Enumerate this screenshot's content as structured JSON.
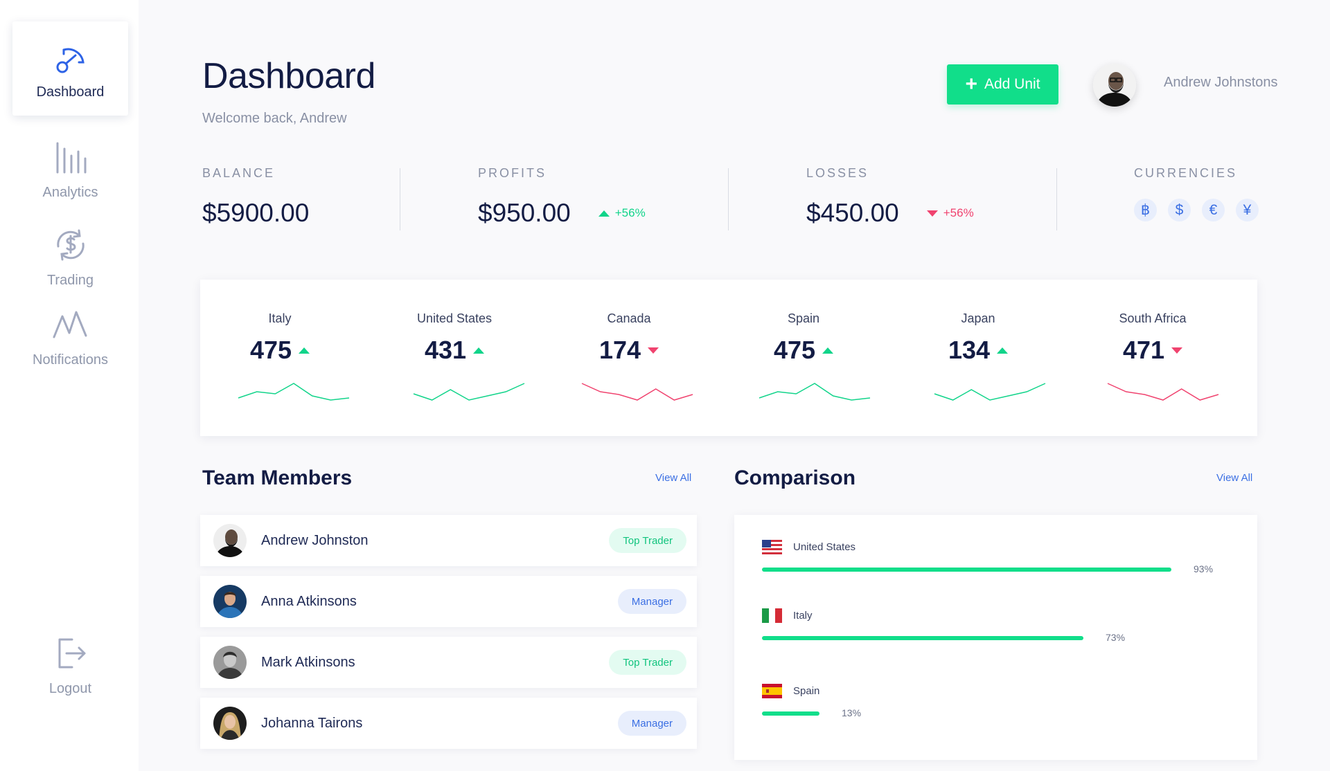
{
  "sidebar": {
    "items": [
      {
        "label": "Dashboard",
        "icon": "gauge-icon",
        "active": true
      },
      {
        "label": "Analytics",
        "icon": "bar-chart-icon"
      },
      {
        "label": "Trading",
        "icon": "dollar-exchange-icon"
      },
      {
        "label": "Notifications",
        "icon": "pulse-icon"
      }
    ],
    "logout": {
      "label": "Logout",
      "icon": "logout-icon"
    }
  },
  "header": {
    "title": "Dashboard",
    "subtitle": "Welcome back, Andrew",
    "add_button": "Add Unit",
    "user_name": "Andrew Johnstons"
  },
  "stats": {
    "balance": {
      "label": "BALANCE",
      "value": "$5900.00"
    },
    "profits": {
      "label": "PROFITS",
      "value": "$950.00",
      "change": "+56%",
      "direction": "up"
    },
    "losses": {
      "label": "LOSSES",
      "value": "$450.00",
      "change": "+56%",
      "direction": "down"
    },
    "currencies": {
      "label": "CURRENCIES",
      "symbols": [
        "฿",
        "$",
        "€",
        "¥"
      ]
    }
  },
  "countries": [
    {
      "name": "Italy",
      "value": "475",
      "trend": "up",
      "spark": [
        2,
        5,
        4,
        9,
        3,
        1,
        2
      ]
    },
    {
      "name": "United States",
      "value": "431",
      "trend": "up",
      "spark": [
        4,
        1,
        6,
        1,
        3,
        5,
        9
      ]
    },
    {
      "name": "Canada",
      "value": "174",
      "trend": "down",
      "spark": [
        8,
        5,
        4,
        2,
        6,
        2,
        4
      ]
    },
    {
      "name": "Spain",
      "value": "475",
      "trend": "up",
      "spark": [
        2,
        5,
        4,
        9,
        3,
        1,
        2
      ]
    },
    {
      "name": "Japan",
      "value": "134",
      "trend": "up",
      "spark": [
        4,
        1,
        6,
        1,
        3,
        5,
        9
      ]
    },
    {
      "name": "South Africa",
      "value": "471",
      "trend": "down",
      "spark": [
        8,
        5,
        4,
        2,
        6,
        2,
        4
      ]
    }
  ],
  "colors": {
    "up": "#11d48a",
    "down": "#f0436f",
    "accent": "#11de8a",
    "link": "#3b6fe3"
  },
  "team": {
    "title": "Team Members",
    "view_all": "View All",
    "members": [
      {
        "name": "Andrew Johnston",
        "badge": "Top Trader"
      },
      {
        "name": "Anna Atkinsons",
        "badge": "Manager"
      },
      {
        "name": "Mark Atkinsons",
        "badge": "Top Trader"
      },
      {
        "name": "Johanna Tairons",
        "badge": "Manager"
      }
    ]
  },
  "comparison": {
    "title": "Comparison",
    "view_all": "View All",
    "items": [
      {
        "country": "United States",
        "percent": 93,
        "label": "93%"
      },
      {
        "country": "Italy",
        "percent": 73,
        "label": "73%"
      },
      {
        "country": "Spain",
        "percent": 13,
        "label": "13%"
      }
    ]
  }
}
